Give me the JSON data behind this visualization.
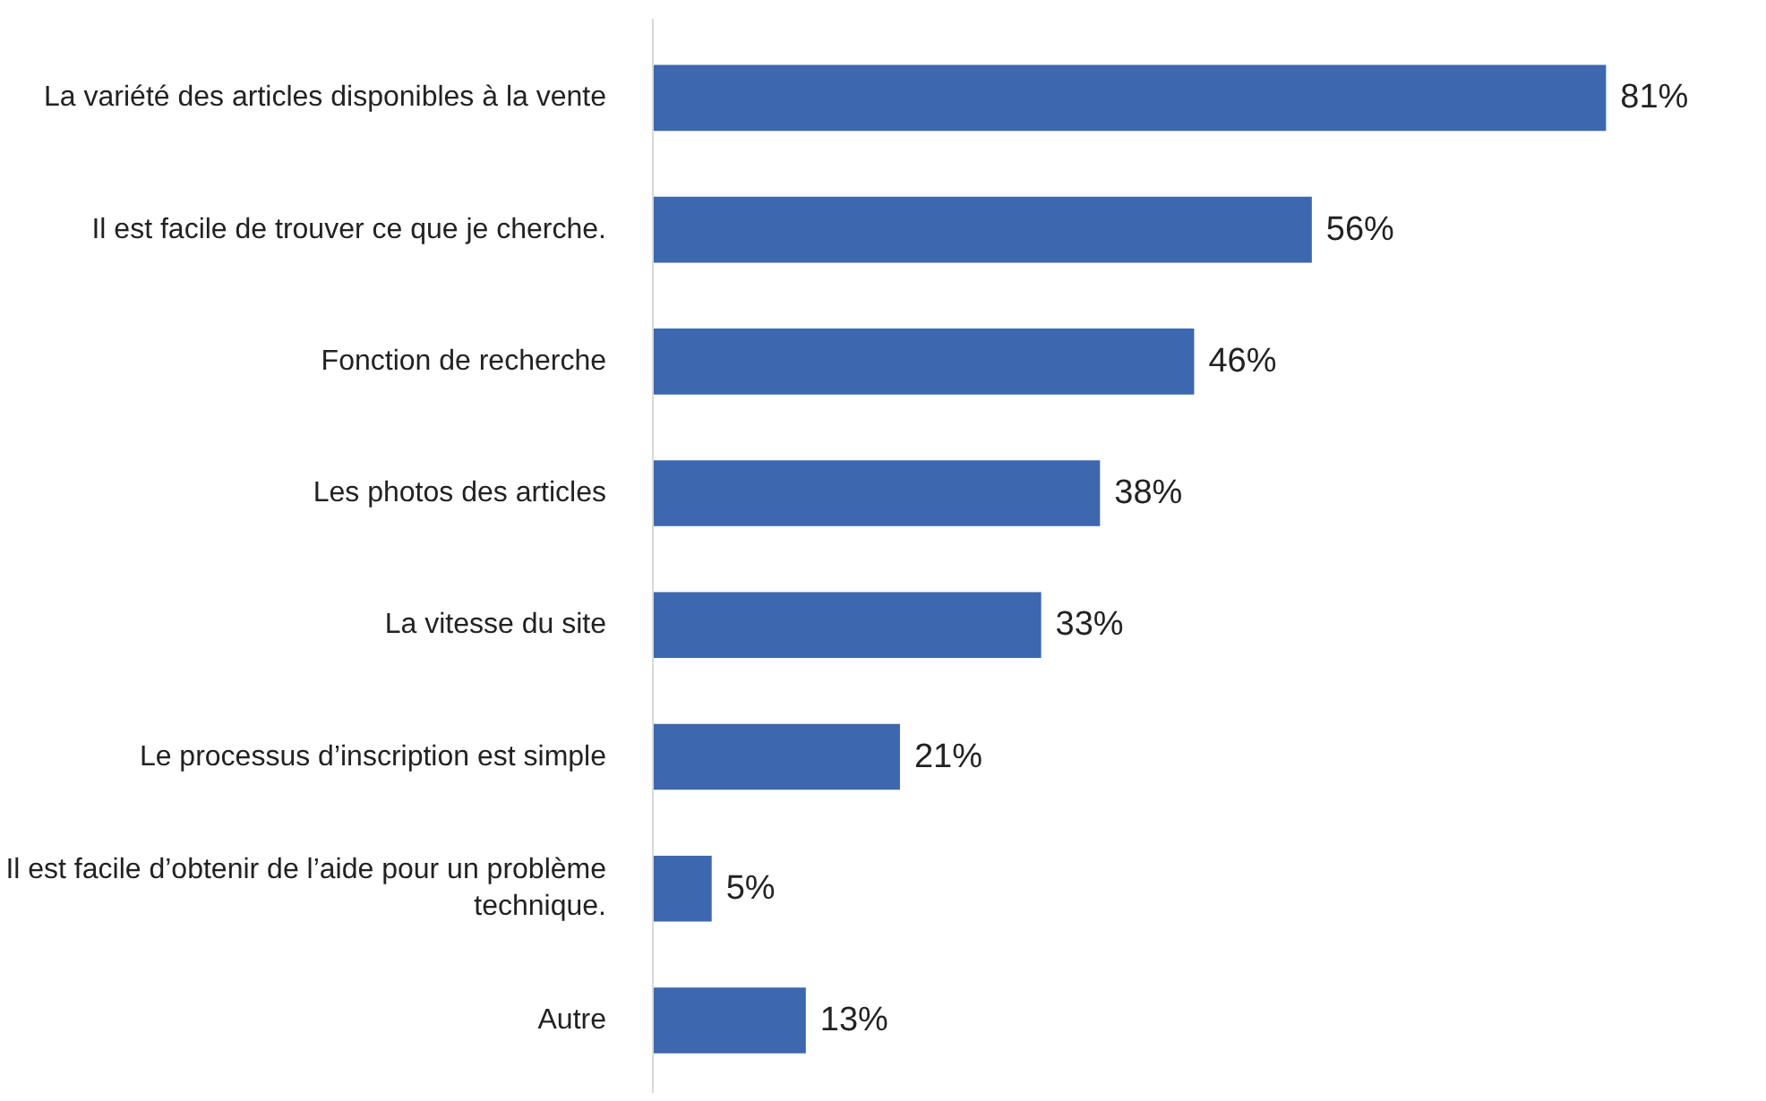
{
  "chart_data": {
    "type": "bar",
    "orientation": "horizontal",
    "categories": [
      "La variété des articles disponibles à la vente",
      "Il est facile de trouver ce que je cherche.",
      "Fonction de recherche",
      "Les photos des articles",
      "La vitesse du site",
      "Le processus d’inscription est simple",
      "Il est facile d’obtenir de l’aide pour un problème technique.",
      "Autre"
    ],
    "values": [
      81,
      56,
      46,
      38,
      33,
      21,
      5,
      13
    ],
    "value_labels": [
      "81%",
      "56%",
      "46%",
      "38%",
      "33%",
      "21%",
      "5%",
      "13%"
    ],
    "color": "#3d67ae"
  }
}
